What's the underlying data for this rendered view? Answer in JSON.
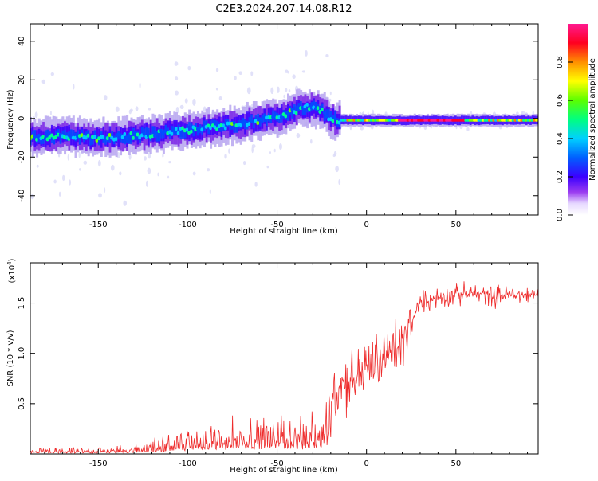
{
  "title": "C2E3.2024.207.14.08.R12",
  "colors": {
    "snr_line": "#ee2c2c",
    "spectrogram_ramp": [
      "#d9d9f8",
      "#b7a6f0",
      "#7a23e6",
      "#3b00ff",
      "#0050ff",
      "#00c8ff",
      "#00ff90",
      "#7cff00",
      "#ffff00",
      "#ff8000",
      "#ff0030",
      "#ff1a8c"
    ]
  },
  "chart_data": [
    {
      "type": "heatmap",
      "name": "spectrogram",
      "xlabel": "Height of straight line (km)",
      "ylabel": "Frequency (Hz)",
      "xlim": [
        -188,
        96
      ],
      "ylim": [
        -50,
        49
      ],
      "x_ticks": [
        -150,
        -100,
        -50,
        0,
        50
      ],
      "x_tick_labels": [
        "-150",
        "-100",
        "-50",
        "0",
        "50"
      ],
      "y_ticks": [
        -40,
        -20,
        0,
        20,
        40
      ],
      "y_tick_labels": [
        "-40",
        "-20",
        "0",
        "20",
        "40"
      ],
      "trace_x": [
        -188,
        -170,
        -150,
        -130,
        -110,
        -90,
        -70,
        -50,
        -40,
        -32,
        -25,
        -20,
        -16,
        0,
        50,
        96
      ],
      "trace_freq": [
        -10,
        -9,
        -10,
        -9,
        -7,
        -5,
        -3,
        1,
        4,
        6,
        4,
        0,
        -1,
        -1,
        -1,
        -1
      ],
      "colorbar": {
        "label": "Normalized spectral amplitude",
        "range": [
          0,
          1
        ],
        "ticks": [
          0.0,
          0.2,
          0.4,
          0.6,
          0.8
        ],
        "tick_labels": [
          "0.0",
          "0.2",
          "0.4",
          "0.6",
          "0.8"
        ]
      }
    },
    {
      "type": "line",
      "name": "snr",
      "xlabel": "Height of straight line (km)",
      "ylabel": "SNR (10 * v/v)",
      "y_multiplier": "(x10",
      "y_multiplier_exp": "4",
      "y_multiplier_close": ")",
      "xlim": [
        -188,
        96
      ],
      "ylim": [
        0,
        19000
      ],
      "x_ticks": [
        -150,
        -100,
        -50,
        0,
        50
      ],
      "x_tick_labels": [
        "-150",
        "-100",
        "-50",
        "0",
        "50"
      ],
      "y_ticks": [
        5000,
        10000,
        15000
      ],
      "y_tick_labels": [
        "0.5",
        "1.0",
        "1.5"
      ],
      "series": [
        {
          "name": "SNR",
          "x": [
            -188,
            -160,
            -140,
            -130,
            -120,
            -110,
            -100,
            -90,
            -80,
            -70,
            -60,
            -50,
            -40,
            -32,
            -25,
            -20,
            -15,
            -10,
            -5,
            0,
            5,
            10,
            15,
            20,
            25,
            30,
            40,
            50,
            60,
            70,
            80,
            96
          ],
          "values": [
            400,
            400,
            500,
            600,
            1000,
            1300,
            1700,
            2000,
            2200,
            2400,
            2400,
            2800,
            2200,
            2200,
            3500,
            5000,
            7000,
            7200,
            7800,
            8500,
            9000,
            9500,
            10300,
            10700,
            13000,
            15000,
            15600,
            15800,
            16000,
            15700,
            15800,
            15800
          ]
        }
      ]
    }
  ]
}
